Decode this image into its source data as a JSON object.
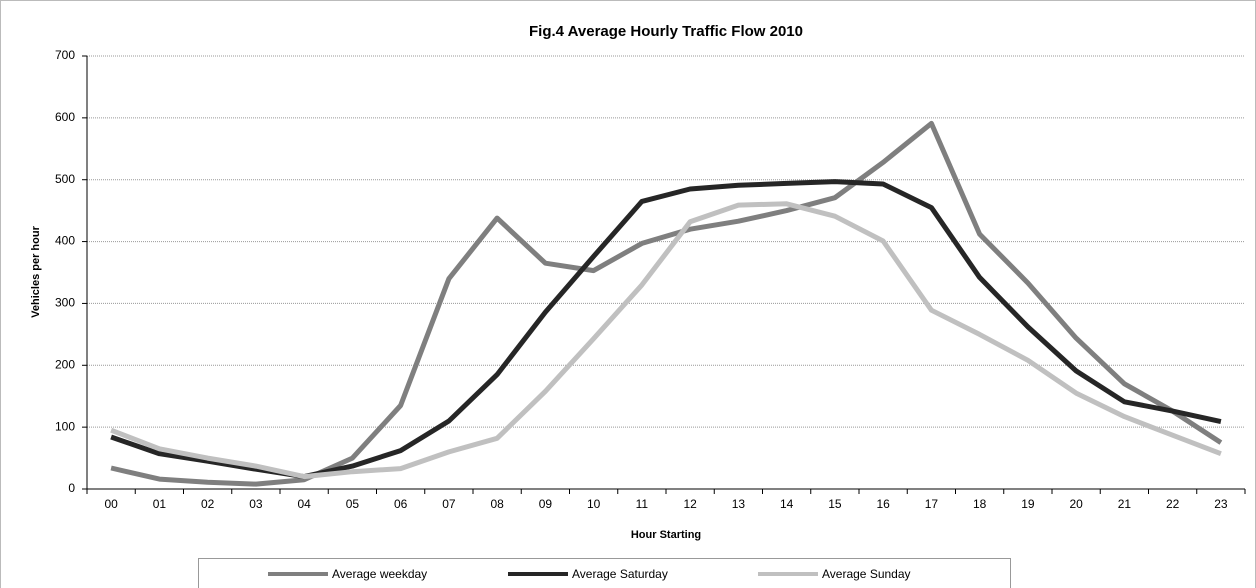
{
  "chart_data": {
    "type": "line",
    "title": "Fig.4 Average Hourly Traffic Flow 2010",
    "x_label": "Hour Starting",
    "y_label": "Vehicles per hour",
    "categories": [
      "00",
      "01",
      "02",
      "03",
      "04",
      "05",
      "06",
      "07",
      "08",
      "09",
      "10",
      "11",
      "12",
      "13",
      "14",
      "15",
      "16",
      "17",
      "18",
      "19",
      "20",
      "21",
      "22",
      "23"
    ],
    "series": [
      {
        "name": "Average weekday",
        "color": "#7f7f7f",
        "values": [
          34,
          16,
          11,
          8,
          15,
          50,
          135,
          340,
          438,
          365,
          353,
          397,
          420,
          433,
          450,
          471,
          528,
          591,
          412,
          333,
          244,
          170,
          126,
          75
        ]
      },
      {
        "name": "Average Saturday",
        "color": "#262626",
        "values": [
          84,
          57,
          45,
          32,
          20,
          37,
          62,
          110,
          185,
          286,
          376,
          465,
          485,
          491,
          494,
          497,
          493,
          455,
          342,
          262,
          191,
          141,
          126,
          109
        ]
      },
      {
        "name": "Average Sunday",
        "color": "#c0c0c0",
        "values": [
          95,
          65,
          50,
          37,
          20,
          28,
          33,
          60,
          82,
          158,
          243,
          330,
          432,
          459,
          461,
          441,
          401,
          289,
          250,
          208,
          155,
          117,
          87,
          57
        ]
      }
    ],
    "ylim": [
      0,
      700
    ],
    "yticks": [
      0,
      100,
      200,
      300,
      400,
      500,
      600,
      700
    ],
    "grid": true,
    "legend": "bottom"
  }
}
